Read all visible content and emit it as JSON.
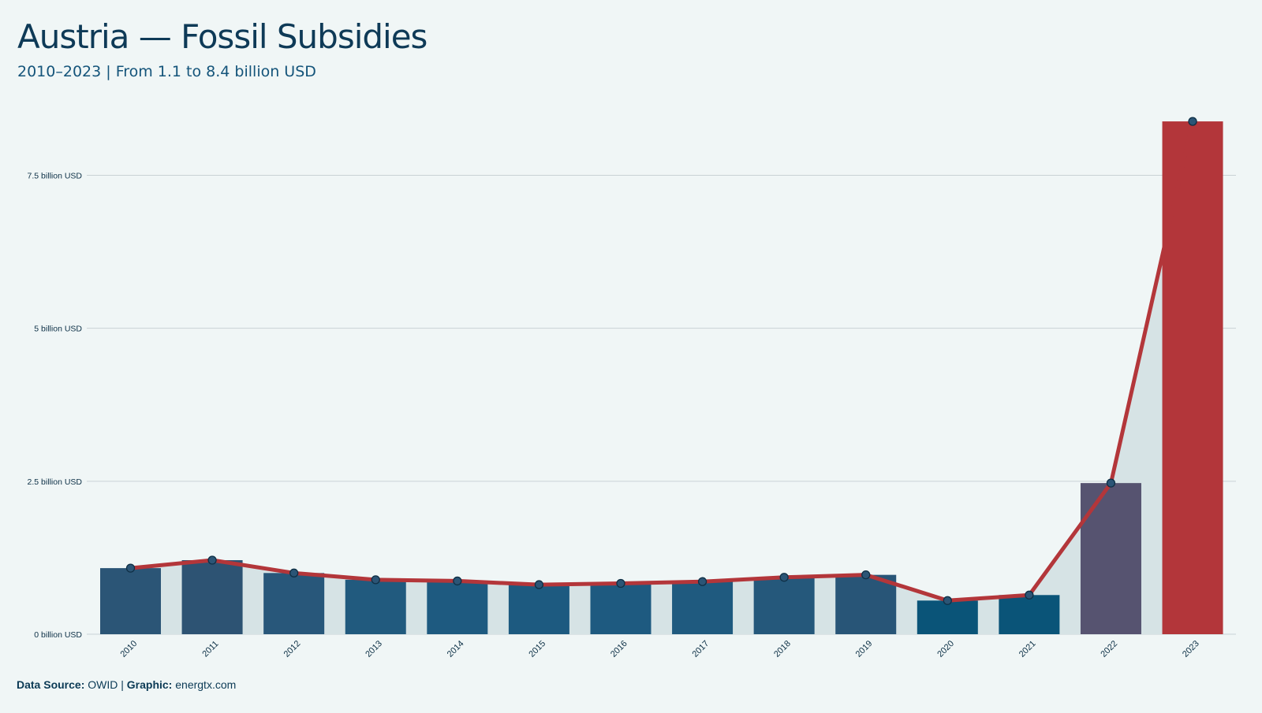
{
  "title": "Austria — Fossil Subsidies",
  "subtitle": "2010–2023 | From 1.1 to 8.4 billion USD",
  "footer": {
    "source_label": "Data Source:",
    "source_value": "OWID",
    "separator": "|",
    "graphic_label": "Graphic:",
    "graphic_value": "energtx.com"
  },
  "chart_data": {
    "type": "bar",
    "categories": [
      "2010",
      "2011",
      "2012",
      "2013",
      "2014",
      "2015",
      "2016",
      "2017",
      "2018",
      "2019",
      "2020",
      "2021",
      "2022",
      "2023"
    ],
    "values": [
      1.08,
      1.21,
      1.0,
      0.89,
      0.87,
      0.81,
      0.83,
      0.86,
      0.93,
      0.97,
      0.55,
      0.64,
      2.47,
      8.38
    ],
    "series": [
      {
        "type": "bar",
        "values": [
          1.08,
          1.21,
          1.0,
          0.89,
          0.87,
          0.81,
          0.83,
          0.86,
          0.93,
          0.97,
          0.55,
          0.64,
          2.47,
          8.38
        ]
      },
      {
        "type": "line",
        "values": [
          1.08,
          1.21,
          1.0,
          0.89,
          0.87,
          0.81,
          0.83,
          0.86,
          0.93,
          0.97,
          0.55,
          0.64,
          2.47,
          8.38
        ]
      }
    ],
    "ylim": [
      0,
      8.6
    ],
    "yticks": [
      0,
      2.5,
      5,
      7.5
    ],
    "ytick_labels": [
      "0 billion USD",
      "2.5 billion USD",
      "5 billion USD",
      "7.5 billion USD"
    ],
    "grid": true,
    "bar_colors": [
      "#2b5576",
      "#2d5373",
      "#28577a",
      "#215a7e",
      "#1e5a80",
      "#1d5a80",
      "#1e5a80",
      "#1f5a7f",
      "#25587b",
      "#285577",
      "#0a5478",
      "#0a5478",
      "#565370",
      "#b3363a"
    ],
    "line_color": "#b3363a",
    "marker_color": "#2b5576",
    "area_color": "#d6e3e5"
  }
}
